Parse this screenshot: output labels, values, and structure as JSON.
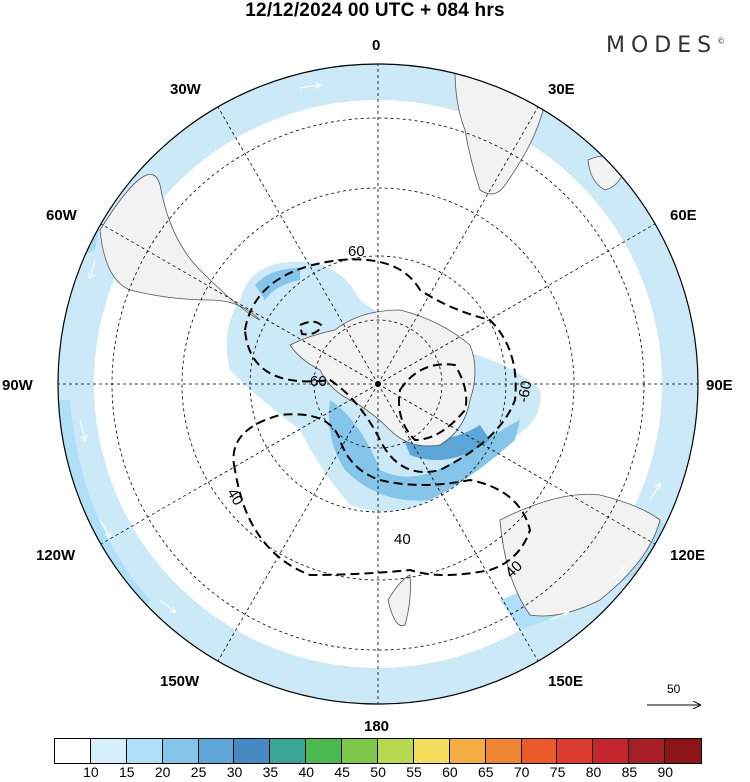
{
  "header": {
    "title": "12/12/2024  00 UTC  + 084 hrs",
    "brand": "MODES",
    "brand_mark": "©"
  },
  "map": {
    "projection": "south-polar-stereographic",
    "longitude_labels": {
      "top": "0",
      "top_right": "30E",
      "right_upper": "60E",
      "right": "90E",
      "right_lower": "120E",
      "bottom_right": "150E",
      "bottom": "180",
      "bottom_left": "150W",
      "left_lower": "120W",
      "left": "90W",
      "left_upper": "60W",
      "top_left": "30W"
    },
    "contour_labels": [
      "60",
      "-60",
      "-60",
      "40",
      "40",
      "40"
    ],
    "reference_vector_label": "50",
    "colors": {
      "land": "#f2f2f2",
      "ocean": "#ffffff",
      "coast": "#555555",
      "wind_light": "#cce9f8",
      "wind_mid": "#a8d8f3",
      "wind_strong": "#7cc0ea"
    }
  },
  "colorbar": {
    "colors": [
      "#ffffff",
      "#d6f0fb",
      "#b0e0f7",
      "#86c5ea",
      "#5fa6d8",
      "#4689c3",
      "#3aa696",
      "#4cb850",
      "#7ec74b",
      "#b8d94f",
      "#f5dc5b",
      "#f4ad43",
      "#ee8633",
      "#ea5a2a",
      "#dc3a2c",
      "#c4262d",
      "#a81e25",
      "#8e1517"
    ],
    "ticks": [
      "10",
      "15",
      "20",
      "25",
      "30",
      "35",
      "40",
      "45",
      "50",
      "55",
      "60",
      "65",
      "70",
      "75",
      "80",
      "85",
      "90"
    ]
  }
}
